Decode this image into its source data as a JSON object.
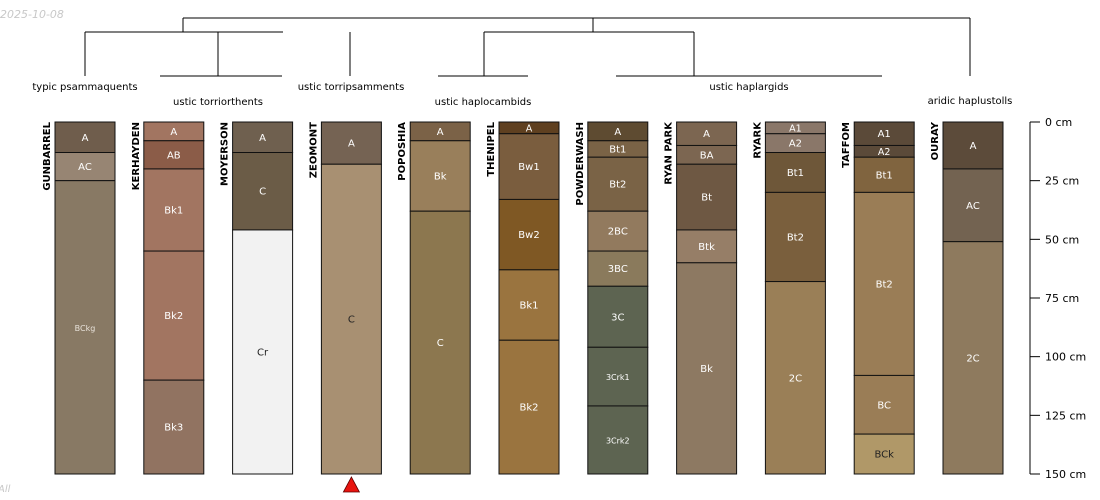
{
  "date": "2025-10-08",
  "corner_note": "All",
  "axis": {
    "max": 150,
    "unit": "cm",
    "ticks": [
      0,
      25,
      50,
      75,
      100,
      125,
      150
    ],
    "tick_labels": [
      "0 cm",
      "25 cm",
      "50 cm",
      "75 cm",
      "100 cm",
      "125 cm",
      "150 cm"
    ]
  },
  "groups": [
    {
      "label": "typic psammaquents"
    },
    {
      "label": "ustic torriorthents"
    },
    {
      "label": "ustic torripsamments"
    },
    {
      "label": "ustic haplocambids"
    },
    {
      "label": "ustic haplargids"
    },
    {
      "label": "aridic haplustolls"
    }
  ],
  "profiles": [
    {
      "name": "GUNBARREL",
      "horizons": [
        {
          "name": "A",
          "top": 0,
          "bottom": 13,
          "color": "#6f5d4c",
          "text_color": "#ffffff"
        },
        {
          "name": "AC",
          "top": 13,
          "bottom": 25,
          "color": "#978573",
          "text_color": "#ffffff"
        },
        {
          "name": "BCkg",
          "top": 25,
          "bottom": 150,
          "color": "#887964",
          "text_color": "#e8e2da"
        }
      ]
    },
    {
      "name": "KERHAYDEN",
      "horizons": [
        {
          "name": "A",
          "top": 0,
          "bottom": 8,
          "color": "#a27561",
          "text_color": "#ffffff"
        },
        {
          "name": "AB",
          "top": 8,
          "bottom": 20,
          "color": "#8b5c48",
          "text_color": "#ffffff"
        },
        {
          "name": "Bk1",
          "top": 20,
          "bottom": 55,
          "color": "#a27561",
          "text_color": "#ffffff"
        },
        {
          "name": "Bk2",
          "top": 55,
          "bottom": 110,
          "color": "#a27561",
          "text_color": "#ffffff"
        },
        {
          "name": "Bk3",
          "top": 110,
          "bottom": 150,
          "color": "#917361",
          "text_color": "#ffffff"
        }
      ]
    },
    {
      "name": "MOYERSON",
      "horizons": [
        {
          "name": "A",
          "top": 0,
          "bottom": 13,
          "color": "#6f604f",
          "text_color": "#ffffff"
        },
        {
          "name": "C",
          "top": 13,
          "bottom": 46,
          "color": "#6b5c47",
          "text_color": "#ffffff"
        },
        {
          "name": "Cr",
          "top": 46,
          "bottom": 150,
          "color": "#f2f2f2",
          "text_color": "#222222"
        }
      ]
    },
    {
      "name": "ZEOMONT",
      "marker": true,
      "horizons": [
        {
          "name": "A",
          "top": 0,
          "bottom": 18,
          "color": "#756353",
          "text_color": "#ffffff"
        },
        {
          "name": "C",
          "top": 18,
          "bottom": 150,
          "color": "#a89072",
          "text_color": "#222222"
        }
      ]
    },
    {
      "name": "POPOSHIA",
      "horizons": [
        {
          "name": "A",
          "top": 0,
          "bottom": 8,
          "color": "#7b6247",
          "text_color": "#ffffff"
        },
        {
          "name": "Bk",
          "top": 8,
          "bottom": 38,
          "color": "#997f5b",
          "text_color": "#ffffff"
        },
        {
          "name": "C",
          "top": 38,
          "bottom": 150,
          "color": "#8c774f",
          "text_color": "#ffffff"
        }
      ]
    },
    {
      "name": "THENIPEL",
      "horizons": [
        {
          "name": "A",
          "top": 0,
          "bottom": 5,
          "color": "#5f4020",
          "text_color": "#ffffff"
        },
        {
          "name": "Bw1",
          "top": 5,
          "bottom": 33,
          "color": "#7a5d3e",
          "text_color": "#ffffff"
        },
        {
          "name": "Bw2",
          "top": 33,
          "bottom": 63,
          "color": "#7f5824",
          "text_color": "#ffffff"
        },
        {
          "name": "Bk1",
          "top": 63,
          "bottom": 93,
          "color": "#9a743f",
          "text_color": "#ffffff"
        },
        {
          "name": "Bk2",
          "top": 93,
          "bottom": 150,
          "color": "#9a743f",
          "text_color": "#ffffff"
        }
      ]
    },
    {
      "name": "POWDERWASH",
      "horizons": [
        {
          "name": "A",
          "top": 0,
          "bottom": 8,
          "color": "#5e4b31",
          "text_color": "#ffffff"
        },
        {
          "name": "Bt1",
          "top": 8,
          "bottom": 15,
          "color": "#7a6346",
          "text_color": "#ffffff"
        },
        {
          "name": "Bt2",
          "top": 15,
          "bottom": 38,
          "color": "#7a6346",
          "text_color": "#ffffff"
        },
        {
          "name": "2BC",
          "top": 38,
          "bottom": 55,
          "color": "#927a5e",
          "text_color": "#ffffff"
        },
        {
          "name": "3BC",
          "top": 55,
          "bottom": 70,
          "color": "#8a7a5c",
          "text_color": "#ffffff"
        },
        {
          "name": "3C",
          "top": 70,
          "bottom": 96,
          "color": "#5d6451",
          "text_color": "#ffffff"
        },
        {
          "name": "3Crk1",
          "top": 96,
          "bottom": 121,
          "color": "#5d6451",
          "text_color": "#ffffff"
        },
        {
          "name": "3Crk2",
          "top": 121,
          "bottom": 150,
          "color": "#5d6451",
          "text_color": "#ffffff"
        }
      ]
    },
    {
      "name": "RYAN PARK",
      "horizons": [
        {
          "name": "A",
          "top": 0,
          "bottom": 10,
          "color": "#7c6651",
          "text_color": "#ffffff"
        },
        {
          "name": "BA",
          "top": 10,
          "bottom": 18,
          "color": "#7c6651",
          "text_color": "#ffffff"
        },
        {
          "name": "Bt",
          "top": 18,
          "bottom": 46,
          "color": "#6e5843",
          "text_color": "#ffffff"
        },
        {
          "name": "Btk",
          "top": 46,
          "bottom": 60,
          "color": "#967e67",
          "text_color": "#ffffff"
        },
        {
          "name": "Bk",
          "top": 60,
          "bottom": 150,
          "color": "#8d7962",
          "text_color": "#ffffff"
        }
      ]
    },
    {
      "name": "RYARK",
      "horizons": [
        {
          "name": "A1",
          "top": 0,
          "bottom": 5,
          "color": "#8a7769",
          "text_color": "#ffffff"
        },
        {
          "name": "A2",
          "top": 5,
          "bottom": 13,
          "color": "#8a7769",
          "text_color": "#ffffff"
        },
        {
          "name": "Bt1",
          "top": 13,
          "bottom": 30,
          "color": "#6e5739",
          "text_color": "#ffffff"
        },
        {
          "name": "Bt2",
          "top": 30,
          "bottom": 68,
          "color": "#7a5f3d",
          "text_color": "#ffffff"
        },
        {
          "name": "2C",
          "top": 68,
          "bottom": 150,
          "color": "#9a7f57",
          "text_color": "#ffffff"
        }
      ]
    },
    {
      "name": "TAFFOM",
      "horizons": [
        {
          "name": "A1",
          "top": 0,
          "bottom": 10,
          "color": "#5b4a39",
          "text_color": "#ffffff"
        },
        {
          "name": "A2",
          "top": 10,
          "bottom": 15,
          "color": "#5b4a39",
          "text_color": "#ffffff"
        },
        {
          "name": "Bt1",
          "top": 15,
          "bottom": 30,
          "color": "#80643f",
          "text_color": "#ffffff"
        },
        {
          "name": "Bt2",
          "top": 30,
          "bottom": 108,
          "color": "#9a7d56",
          "text_color": "#ffffff"
        },
        {
          "name": "BC",
          "top": 108,
          "bottom": 133,
          "color": "#9a7d56",
          "text_color": "#ffffff"
        },
        {
          "name": "BCk",
          "top": 133,
          "bottom": 150,
          "color": "#b09868",
          "text_color": "#222222"
        }
      ]
    },
    {
      "name": "OURAY",
      "horizons": [
        {
          "name": "A",
          "top": 0,
          "bottom": 20,
          "color": "#5c4b3a",
          "text_color": "#ffffff"
        },
        {
          "name": "AC",
          "top": 20,
          "bottom": 51,
          "color": "#736351",
          "text_color": "#ffffff"
        },
        {
          "name": "2C",
          "top": 51,
          "bottom": 150,
          "color": "#8e7a5e",
          "text_color": "#ffffff"
        }
      ]
    }
  ]
}
